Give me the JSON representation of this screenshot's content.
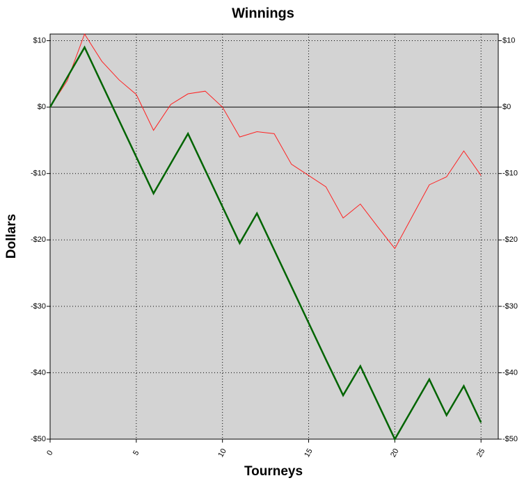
{
  "chart_data": {
    "type": "line",
    "title": "Winnings",
    "x_label": "Tourneys",
    "y_label": "Dollars",
    "x": [
      0,
      1,
      2,
      3,
      4,
      5,
      6,
      7,
      8,
      9,
      10,
      11,
      12,
      13,
      14,
      15,
      16,
      17,
      18,
      19,
      20,
      21,
      22,
      23,
      24,
      25
    ],
    "series": [
      {
        "color": "#ff2020",
        "values": [
          0,
          4,
          11,
          6.9,
          4.1,
          1.9,
          -3.5,
          0.4,
          2,
          2.4,
          0,
          -4.5,
          -3.7,
          -4,
          -8.6,
          -10.3,
          -12,
          -16.7,
          -14.6,
          -18,
          -21.3,
          -16.5,
          -11.7,
          -10.5,
          -6.6,
          -10.3
        ]
      },
      {
        "color": "#006400",
        "values": [
          0,
          4.5,
          9,
          3.5,
          -2,
          -7.5,
          -13,
          -8.5,
          -4,
          -9.5,
          -15,
          -20.5,
          -16,
          -21.5,
          -27,
          -32.5,
          -38,
          -43.4,
          -39,
          -44.5,
          -50,
          -45.5,
          -41,
          -46.4,
          -42,
          -47.5
        ]
      }
    ],
    "xlim": [
      0,
      26
    ],
    "xticks": [
      0,
      5,
      10,
      15,
      20,
      25
    ],
    "ylim": [
      -50,
      11
    ],
    "yticks": [
      {
        "value": -50,
        "label": "-$50"
      },
      {
        "value": -40,
        "label": "-$40"
      },
      {
        "value": -30,
        "label": "-$30"
      },
      {
        "value": -20,
        "label": "-$20"
      },
      {
        "value": -10,
        "label": "-$10"
      },
      {
        "value": 0,
        "label": "$0"
      },
      {
        "value": 10,
        "label": "$10"
      }
    ],
    "grid": true
  }
}
